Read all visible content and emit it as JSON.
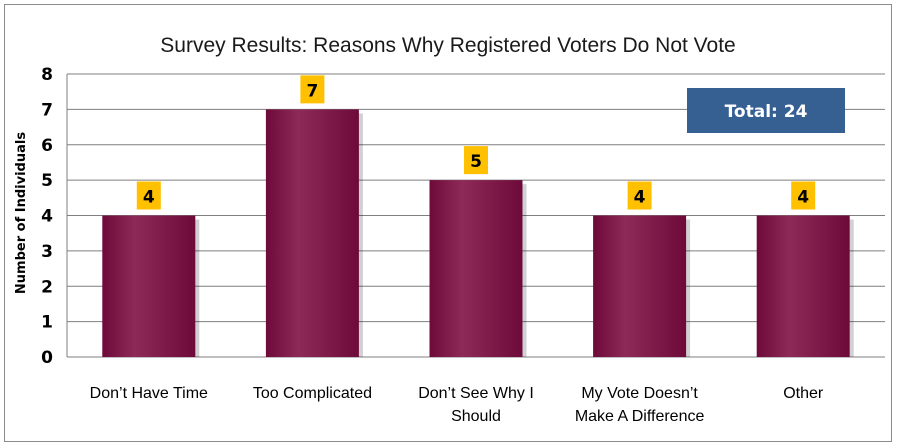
{
  "chart_data": {
    "type": "bar",
    "title": "Survey Results: Reasons Why Registered Voters Do Not Vote",
    "xlabel": "",
    "ylabel": "Number of Individuals",
    "ylim": [
      0,
      8
    ],
    "yticks": [
      0,
      1,
      2,
      3,
      4,
      5,
      6,
      7,
      8
    ],
    "categories": [
      "Don’t Have Time",
      "Too Complicated",
      "Don’t See Why I Should",
      "My Vote Doesn’t Make A Difference",
      "Other"
    ],
    "category_lines": [
      [
        "Don’t Have Time"
      ],
      [
        "Too Complicated"
      ],
      [
        "Don’t See Why I",
        "Should"
      ],
      [
        "My Vote Doesn’t",
        "Make A Difference"
      ],
      [
        "Other"
      ]
    ],
    "values": [
      4,
      7,
      5,
      4,
      4
    ],
    "data_labels": [
      "4",
      "7",
      "5",
      "4",
      "4"
    ],
    "grid": true,
    "legend": "none",
    "annotation": "Total: 24",
    "colors": {
      "bar": "#6e0a3a",
      "bar_highlight": "#8e2a57",
      "data_label_bg": "#ffc000",
      "total_box": "#366092",
      "grid": "#7f7f7f"
    }
  }
}
